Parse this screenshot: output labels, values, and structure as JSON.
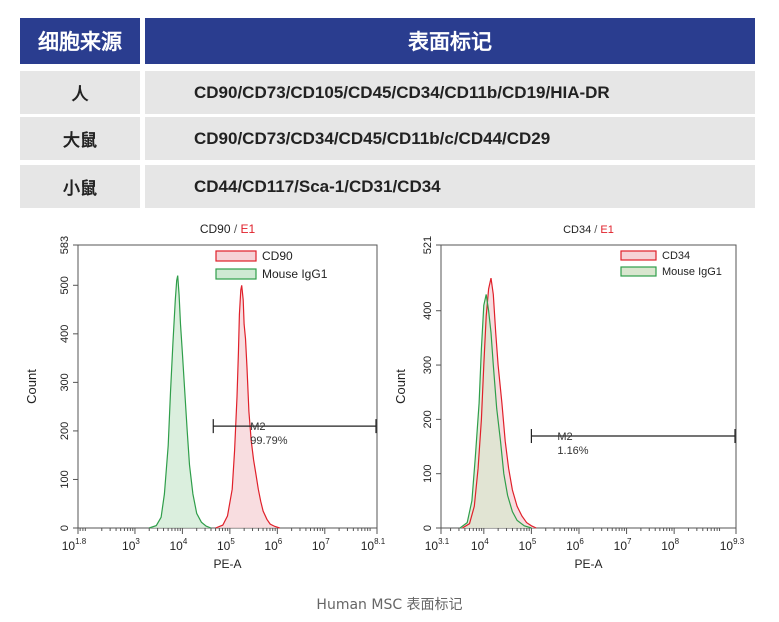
{
  "table": {
    "headers": [
      "细胞来源",
      "表面标记"
    ],
    "rows": [
      {
        "source": "人",
        "markers": "CD90/CD73/CD105/CD45/CD34/CD11b/CD19/HIA-DR"
      },
      {
        "source": "大鼠",
        "markers": "CD90/CD73/CD34/CD45/CD11b/c/CD44/CD29"
      },
      {
        "source": "小鼠",
        "markers": "CD44/CD117/Sca-1/CD31/CD34"
      }
    ]
  },
  "caption": "Human MSC 表面标记",
  "chart_data": [
    {
      "type": "area",
      "title": "CD90 / E1",
      "title_parts": [
        "CD90",
        "/",
        "E1"
      ],
      "xlabel": "PE-A",
      "ylabel": "Count",
      "x_scale": "log",
      "xlim_log10": [
        1.8,
        8.1
      ],
      "xtick_labels": [
        {
          "base": "10",
          "exp": "1.8"
        },
        {
          "base": "10",
          "exp": "3"
        },
        {
          "base": "10",
          "exp": "4"
        },
        {
          "base": "10",
          "exp": "5"
        },
        {
          "base": "10",
          "exp": "6"
        },
        {
          "base": "10",
          "exp": "7"
        },
        {
          "base": "10",
          "exp": "8.1"
        }
      ],
      "ylim": [
        0,
        583
      ],
      "yticks": [
        0,
        100,
        200,
        300,
        400,
        500,
        583
      ],
      "legend": {
        "placement": "top-right",
        "entries": [
          "CD90",
          "Mouse IgG1"
        ]
      },
      "gate": {
        "name": "M2",
        "value": "99.79%",
        "range_log10": [
          4.65,
          8.1
        ]
      },
      "series": [
        {
          "name": "CD90",
          "color": "#e0202a",
          "fill": "#f6d2d6",
          "x": [
            4.7,
            4.85,
            4.95,
            5.05,
            5.1,
            5.15,
            5.18,
            5.2,
            5.23,
            5.25,
            5.28,
            5.3,
            5.33,
            5.36,
            5.4,
            5.45,
            5.5,
            5.55,
            5.6,
            5.65,
            5.7,
            5.78,
            5.85,
            5.95,
            6.05
          ],
          "y": [
            0,
            6,
            25,
            80,
            160,
            270,
            360,
            440,
            490,
            500,
            470,
            420,
            390,
            330,
            240,
            180,
            140,
            110,
            80,
            55,
            35,
            18,
            8,
            3,
            0
          ]
        },
        {
          "name": "Mouse IgG1",
          "color": "#2f9e4a",
          "fill": "#cfe9d3",
          "x": [
            3.3,
            3.45,
            3.55,
            3.62,
            3.7,
            3.75,
            3.8,
            3.85,
            3.88,
            3.9,
            3.93,
            3.96,
            4.0,
            4.05,
            4.1,
            4.15,
            4.22,
            4.3,
            4.4,
            4.5,
            4.6
          ],
          "y": [
            0,
            5,
            22,
            70,
            170,
            280,
            380,
            470,
            510,
            520,
            480,
            420,
            360,
            280,
            200,
            130,
            70,
            30,
            12,
            4,
            0
          ]
        }
      ]
    },
    {
      "type": "area",
      "title": "CD34 / E1",
      "title_parts": [
        "CD34",
        "/",
        "E1"
      ],
      "xlabel": "PE-A",
      "ylabel": "Count",
      "x_scale": "log",
      "xlim_log10": [
        3.1,
        9.3
      ],
      "xtick_labels": [
        {
          "base": "10",
          "exp": "3.1"
        },
        {
          "base": "10",
          "exp": "4"
        },
        {
          "base": "10",
          "exp": "5"
        },
        {
          "base": "10",
          "exp": "6"
        },
        {
          "base": "10",
          "exp": "7"
        },
        {
          "base": "10",
          "exp": "8"
        },
        {
          "base": "10",
          "exp": "9.3"
        }
      ],
      "ylim": [
        0,
        521
      ],
      "yticks": [
        0,
        100,
        200,
        300,
        400,
        521
      ],
      "legend": {
        "placement": "top-right",
        "entries": [
          "CD34",
          "Mouse IgG1"
        ]
      },
      "gate": {
        "name": "M2",
        "value": "1.16%",
        "range_log10": [
          5.0,
          9.3
        ]
      },
      "series": [
        {
          "name": "CD34",
          "color": "#e0202a",
          "fill": "#f6d2d6",
          "x": [
            3.55,
            3.7,
            3.8,
            3.88,
            3.95,
            4.0,
            4.05,
            4.1,
            4.15,
            4.2,
            4.25,
            4.3,
            4.38,
            4.45,
            4.52,
            4.6,
            4.7,
            4.8,
            4.9,
            5.0,
            5.1
          ],
          "y": [
            0,
            8,
            40,
            110,
            200,
            300,
            390,
            440,
            460,
            430,
            360,
            300,
            230,
            160,
            110,
            70,
            40,
            22,
            10,
            4,
            0
          ]
        },
        {
          "name": "Mouse IgG1",
          "color": "#2f9e4a",
          "fill": "#d9e6cf",
          "x": [
            3.5,
            3.65,
            3.75,
            3.82,
            3.9,
            3.95,
            4.0,
            4.05,
            4.1,
            4.15,
            4.2,
            4.27,
            4.35,
            4.42,
            4.5,
            4.6,
            4.7,
            4.85,
            5.0
          ],
          "y": [
            0,
            10,
            50,
            130,
            230,
            330,
            410,
            430,
            400,
            360,
            300,
            220,
            160,
            100,
            60,
            30,
            14,
            4,
            0
          ]
        }
      ]
    }
  ]
}
